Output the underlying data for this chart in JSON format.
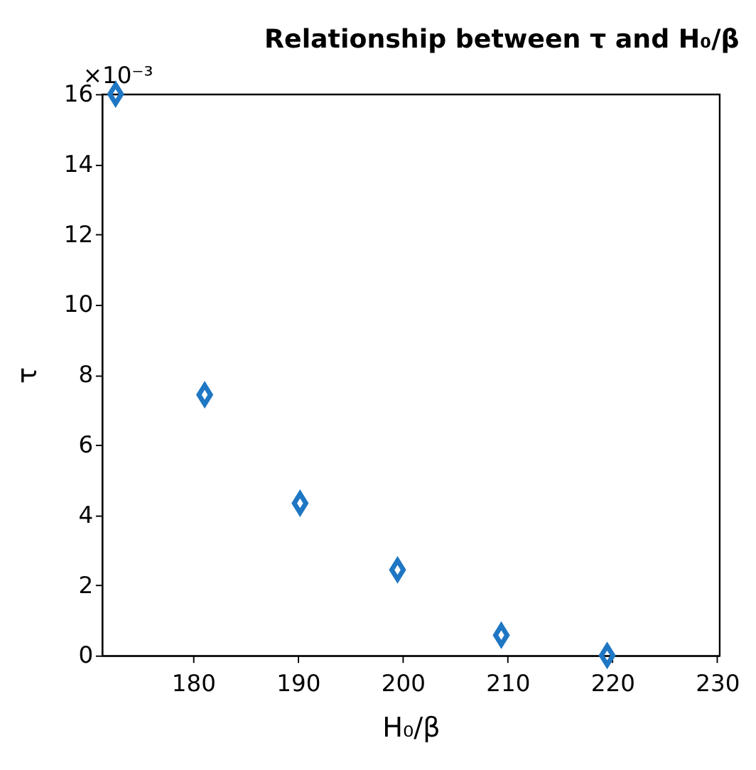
{
  "chart_data": {
    "type": "scatter",
    "title": "Relationship between τ and H₀/β",
    "xlabel": "H₀/β",
    "ylabel": "τ",
    "x": [
      172.6,
      181.1,
      190.2,
      199.5,
      209.4,
      219.5
    ],
    "series": [
      {
        "color": "#1f77c4",
        "values": [
          16,
          7.43,
          4.34,
          2.44,
          0.58,
          0
        ]
      }
    ],
    "xlim": [
      171.3,
      230.2
    ],
    "xticks": [
      180,
      190,
      200,
      210,
      220,
      230
    ],
    "ylim": [
      0,
      16
    ],
    "yticks": [
      0,
      2,
      4,
      6,
      8,
      10,
      12,
      14,
      16
    ],
    "annotations": [
      "×10⁻³"
    ],
    "marker": "diamond",
    "grid": false
  }
}
